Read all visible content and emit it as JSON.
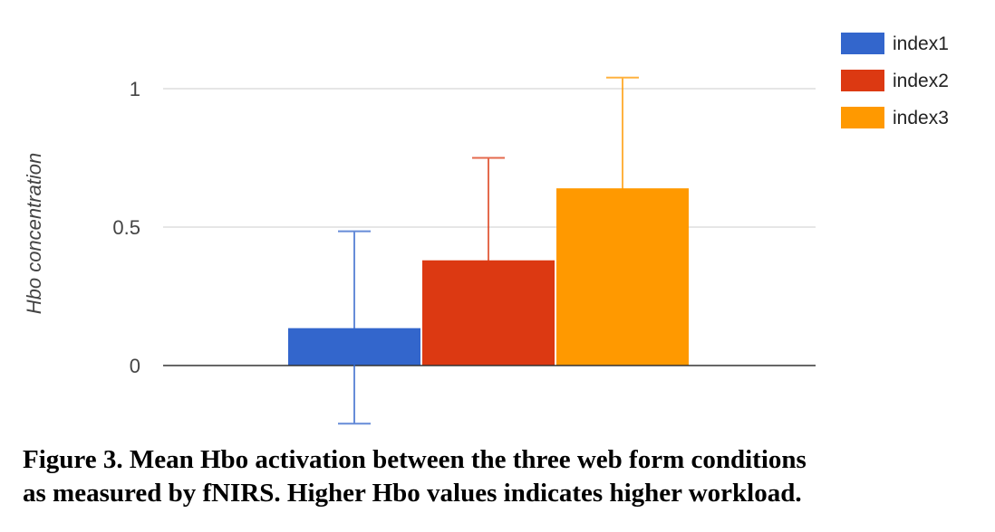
{
  "chart_data": {
    "type": "bar",
    "title": "",
    "xlabel": "",
    "ylabel": "Hbo concentration",
    "ylim": [
      -0.2,
      1.1
    ],
    "yticks": [
      0,
      0.5,
      1
    ],
    "ytick_labels": [
      "0",
      "0.5",
      "1"
    ],
    "grid": true,
    "legend_position": "top-right",
    "series": [
      {
        "name": "index1",
        "value": 0.135,
        "error_low": -0.21,
        "error_high": 0.485,
        "color": "#3366cc"
      },
      {
        "name": "index2",
        "value": 0.38,
        "error_low": 0.01,
        "error_high": 0.75,
        "color": "#dc3912"
      },
      {
        "name": "index3",
        "value": 0.64,
        "error_low": 0.245,
        "error_high": 1.04,
        "color": "#ff9900"
      }
    ]
  },
  "caption": {
    "line1": "Figure 3.  Mean Hbo activation between the three web form conditions",
    "line2": "as measured by fNIRS. Higher Hbo values indicates higher workload."
  }
}
